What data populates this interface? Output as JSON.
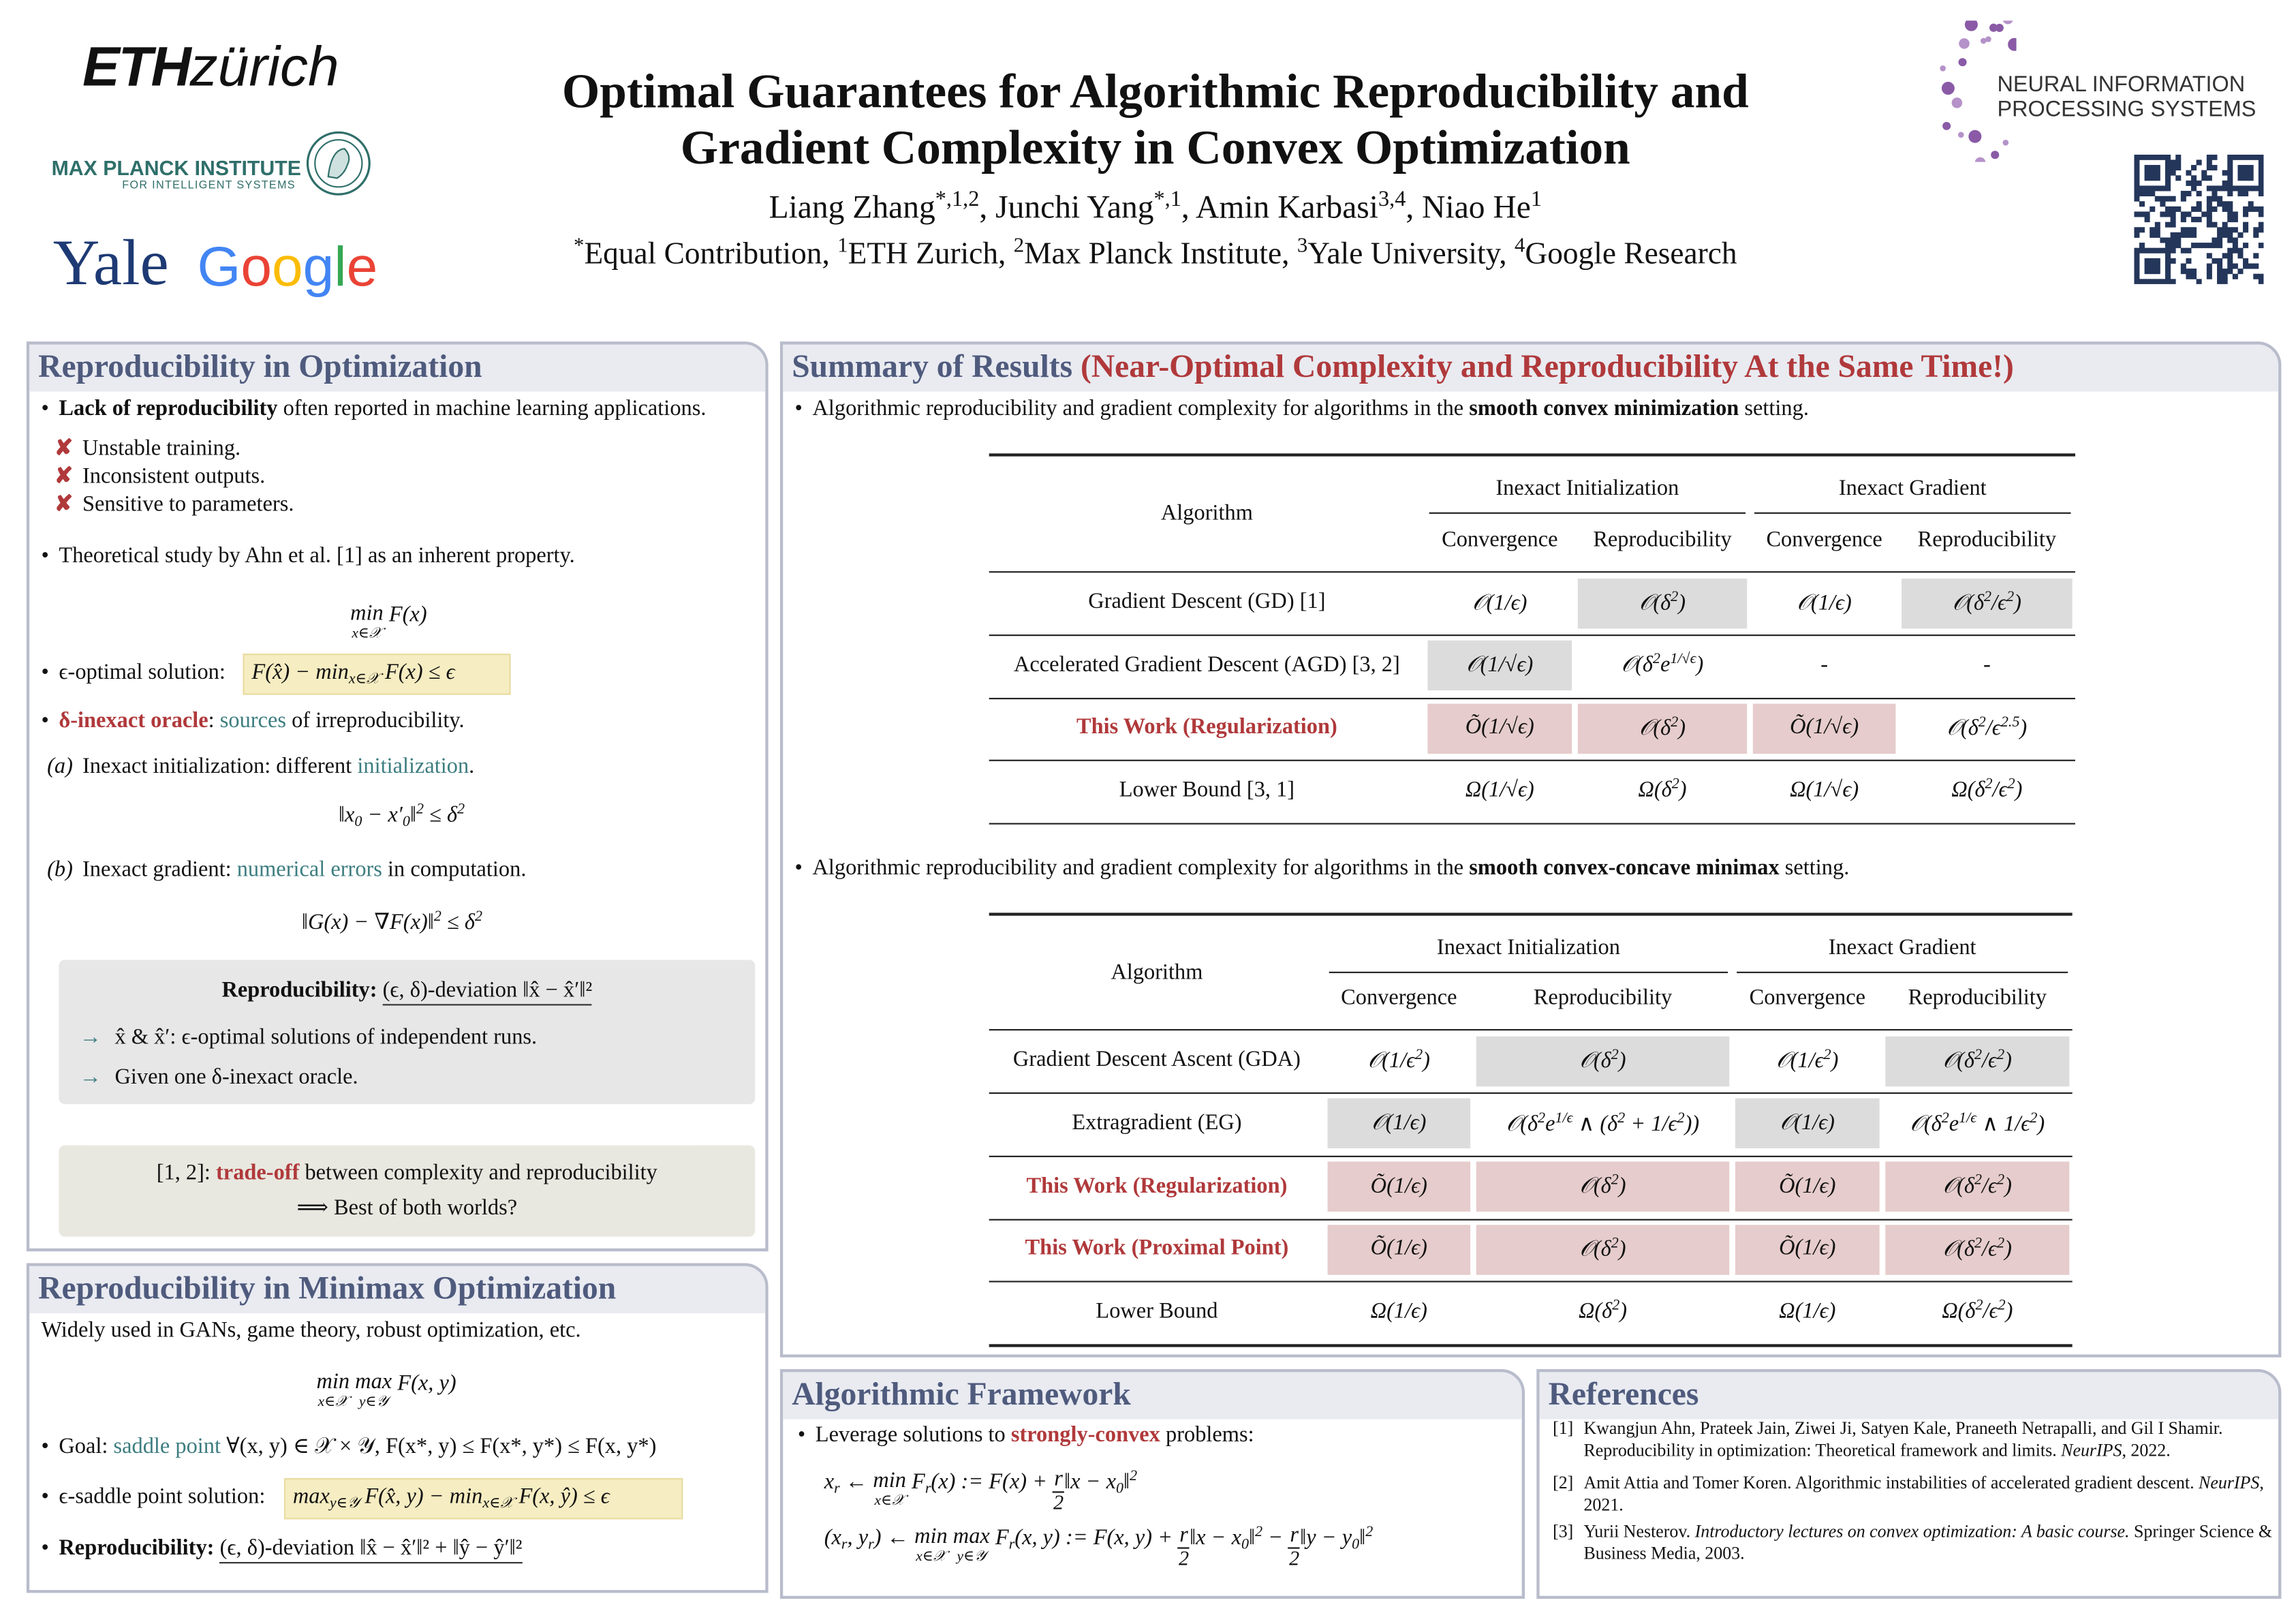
{
  "header": {
    "eth": [
      "ETH",
      "zürich"
    ],
    "max_planck": [
      "MAX PLANCK INSTITUTE",
      "FOR INTELLIGENT SYSTEMS"
    ],
    "yale": "Yale",
    "google": [
      {
        "text": "G",
        "style": "#4285f4"
      },
      {
        "text": "o",
        "style": "#ea4335"
      },
      {
        "text": "o",
        "style": "#fbbc05"
      },
      {
        "text": "g",
        "style": "#4285f4"
      },
      {
        "text": "l",
        "style": "#34a853"
      },
      {
        "text": "e",
        "style": "#ea4335"
      }
    ],
    "neurips": [
      "NEURAL INFORMATION",
      "PROCESSING SYSTEMS"
    ],
    "title": [
      "Optimal  Guarantees  for  Algorithmic  Reproducibility  and",
      "Gradient  Complexity  in  Convex  Optimization"
    ],
    "authors": [
      "Liang Zhang",
      {
        "text": "*,1,2",
        "style": "sup"
      },
      ",  Junchi Yang",
      {
        "text": "*,1",
        "style": "sup"
      },
      ",  Amin Karbasi",
      {
        "text": "3,4",
        "style": "sup"
      },
      ",  Niao He",
      {
        "text": "1",
        "style": "sup"
      }
    ],
    "affiliations": [
      {
        "text": "*",
        "style": "sup"
      },
      "Equal Contribution, ",
      {
        "text": "1",
        "style": "sup"
      },
      "ETH Zurich, ",
      {
        "text": "2",
        "style": "sup"
      },
      "Max Planck Institute, ",
      {
        "text": "3",
        "style": "sup"
      },
      "Yale University, ",
      {
        "text": "4",
        "style": "sup"
      },
      "Google Research"
    ]
  },
  "optimization": {
    "title": "Reproducibility in Optimization",
    "bullet1": [
      {
        "text": "Lack of reproducibility",
        "style": "bold"
      },
      " often reported in machine learning applications."
    ],
    "issues": [
      "Unstable training.",
      "Inconsistent outputs.",
      "Sensitive to parameters."
    ],
    "bullet2": "Theoretical study by Ahn et al. [1] as an inherent property.",
    "objective": [
      {
        "text": "min",
        "under": "x∈𝒳"
      },
      " F(x)"
    ],
    "eps_label": "ϵ-optimal solution:",
    "eps_formula": [
      "F(x̂) − min",
      {
        "text": "x∈𝒳",
        "style": "sub"
      },
      " F(x) ≤ ϵ"
    ],
    "oracle": [
      {
        "text": "δ-inexact oracle",
        "style": "red"
      },
      ": ",
      {
        "text": "sources",
        "style": "teal"
      },
      " of irreproducibility."
    ],
    "case_a": {
      "label": "(a)",
      "text": [
        "Inexact initialization: different ",
        {
          "text": "initialization",
          "style": "teal"
        },
        "."
      ],
      "formula": [
        "‖x",
        {
          "text": "0",
          "style": "sub"
        },
        " − x′",
        {
          "text": "0",
          "style": "sub"
        },
        "‖",
        {
          "text": "2",
          "style": "sup"
        },
        " ≤ δ",
        {
          "text": "2",
          "style": "sup"
        }
      ]
    },
    "case_b": {
      "label": "(b)",
      "text": [
        "Inexact gradient: ",
        {
          "text": "numerical errors",
          "style": "teal"
        },
        " in computation."
      ],
      "formula": [
        "‖G(x) − ∇F(x)‖",
        {
          "text": "2",
          "style": "sup"
        },
        " ≤ δ",
        {
          "text": "2",
          "style": "sup"
        }
      ]
    },
    "box": {
      "heading": [
        {
          "text": "Reproducibility:",
          "style": "bold"
        },
        " ",
        {
          "text": "(ϵ, δ)-deviation ‖x̂ − x̂′‖²",
          "style": "underline"
        }
      ],
      "points": [
        "x̂ & x̂′: ϵ-optimal solutions of independent runs.",
        "Given one δ-inexact oracle."
      ]
    },
    "tradeoff": [
      [
        "[1, 2]: ",
        {
          "text": "trade-off",
          "style": "red"
        },
        " between complexity and reproducibility"
      ],
      [
        "⟹ Best of both worlds?"
      ]
    ]
  },
  "minimax": {
    "title": "Reproducibility in Minimax Optimization",
    "intro": "Widely used in GANs, game theory, robust optimization, etc.",
    "objective": [
      {
        "text": "min",
        "under": "x∈𝒳"
      },
      " ",
      {
        "text": "max",
        "under": "y∈𝒴"
      },
      " F(x, y)"
    ],
    "goal": [
      "Goal: ",
      {
        "text": "saddle point",
        "style": "teal"
      },
      " ∀(x, y) ∈ 𝒳 × 𝒴, F(x*, y) ≤ F(x*, y*) ≤ F(x, y*)"
    ],
    "saddle_label": "ϵ-saddle point solution:",
    "saddle_formula": [
      "max",
      {
        "text": "y∈𝒴",
        "style": "sub"
      },
      " F(x̂, y) − min",
      {
        "text": "x∈𝒳",
        "style": "sub"
      },
      " F(x, ŷ) ≤ ϵ"
    ],
    "reproducibility": [
      {
        "text": "Reproducibility:",
        "style": "bold"
      },
      " ",
      {
        "text": "(ϵ, δ)-deviation ‖x̂ − x̂′‖² + ‖ŷ − ŷ′‖²",
        "style": "underline"
      }
    ]
  },
  "summary": {
    "title": "Summary of Results",
    "subtitle": "(Near-Optimal Complexity and Reproducibility At the Same Time!)",
    "intro1": [
      "Algorithmic reproducibility and gradient complexity for algorithms in the ",
      {
        "text": "smooth convex minimization",
        "style": "bold"
      },
      " setting."
    ],
    "table1": {
      "algorithm_header": "Algorithm",
      "groups": [
        "Inexact Initialization",
        "Inexact Gradient"
      ],
      "subheaders": [
        "Convergence",
        "Reproducibility",
        "Convergence",
        "Reproducibility"
      ],
      "rows": [
        {
          "algorithm": "Gradient Descent (GD) [1]",
          "cells": [
            "𝒪(1/ϵ)",
            [
              "𝒪(δ",
              {
                "text": "2",
                "style": "sup"
              },
              ")"
            ],
            "𝒪(1/ϵ)",
            [
              "𝒪(δ",
              {
                "text": "2",
                "style": "sup"
              },
              "/ϵ",
              {
                "text": "2",
                "style": "sup"
              },
              ")"
            ]
          ],
          "shade": [
            "none",
            "#dcdcdc",
            "none",
            "#dcdcdc"
          ]
        },
        {
          "algorithm": "Accelerated Gradient Descent (AGD) [3, 2]",
          "cells": [
            "𝒪(1/√ϵ)",
            [
              "𝒪(δ",
              {
                "text": "2",
                "style": "sup"
              },
              "e",
              {
                "text": "1/√ϵ",
                "style": "sup"
              },
              ")"
            ],
            "-",
            "-"
          ],
          "shade": [
            "#dcdcdc",
            "none",
            "none",
            "none"
          ]
        },
        {
          "algorithm": "This Work (Regularization)",
          "style": "red",
          "cells": [
            "Õ(1/√ϵ)",
            [
              "𝒪(δ",
              {
                "text": "2",
                "style": "sup"
              },
              ")"
            ],
            "Õ(1/√ϵ)",
            [
              "𝒪(δ",
              {
                "text": "2",
                "style": "sup"
              },
              "/ϵ",
              {
                "text": "2.5",
                "style": "sup"
              },
              ")"
            ]
          ],
          "shade": [
            "#e6cccc",
            "#e6cccc",
            "#e6cccc",
            "none"
          ]
        },
        {
          "algorithm": "Lower Bound [3, 1]",
          "cells": [
            "Ω(1/√ϵ)",
            [
              "Ω(δ",
              {
                "text": "2",
                "style": "sup"
              },
              ")"
            ],
            "Ω(1/√ϵ)",
            [
              "Ω(δ",
              {
                "text": "2",
                "style": "sup"
              },
              "/ϵ",
              {
                "text": "2",
                "style": "sup"
              },
              ")"
            ]
          ],
          "shade": [
            "none",
            "none",
            "none",
            "none"
          ]
        }
      ]
    },
    "intro2": [
      "Algorithmic reproducibility and gradient complexity for algorithms in the ",
      {
        "text": "smooth convex-concave minimax",
        "style": "bold"
      },
      " setting."
    ],
    "table2": {
      "algorithm_header": "Algorithm",
      "groups": [
        "Inexact Initialization",
        "Inexact Gradient"
      ],
      "subheaders": [
        "Convergence",
        "Reproducibility",
        "Convergence",
        "Reproducibility"
      ],
      "rows": [
        {
          "algorithm": "Gradient Descent Ascent (GDA)",
          "cells": [
            [
              "𝒪(1/ϵ",
              {
                "text": "2",
                "style": "sup"
              },
              ")"
            ],
            [
              "𝒪(δ",
              {
                "text": "2",
                "style": "sup"
              },
              ")"
            ],
            [
              "𝒪(1/ϵ",
              {
                "text": "2",
                "style": "sup"
              },
              ")"
            ],
            [
              "𝒪(δ",
              {
                "text": "2",
                "style": "sup"
              },
              "/ϵ",
              {
                "text": "2",
                "style": "sup"
              },
              ")"
            ]
          ],
          "shade": [
            "none",
            "#dcdcdc",
            "none",
            "#dcdcdc"
          ]
        },
        {
          "algorithm": "Extragradient (EG)",
          "cells": [
            "𝒪(1/ϵ)",
            [
              "𝒪(δ",
              {
                "text": "2",
                "style": "sup"
              },
              "e",
              {
                "text": "1/ϵ",
                "style": "sup"
              },
              " ∧ (δ",
              {
                "text": "2",
                "style": "sup"
              },
              " + 1/ϵ",
              {
                "text": "2",
                "style": "sup"
              },
              "))"
            ],
            "𝒪(1/ϵ)",
            [
              "𝒪(δ",
              {
                "text": "2",
                "style": "sup"
              },
              "e",
              {
                "text": "1/ϵ",
                "style": "sup"
              },
              " ∧ 1/ϵ",
              {
                "text": "2",
                "style": "sup"
              },
              ")"
            ]
          ],
          "shade": [
            "#dcdcdc",
            "none",
            "#dcdcdc",
            "none"
          ]
        },
        {
          "algorithm": "This Work (Regularization)",
          "style": "red",
          "cells": [
            "Õ(1/ϵ)",
            [
              "𝒪(δ",
              {
                "text": "2",
                "style": "sup"
              },
              ")"
            ],
            "Õ(1/ϵ)",
            [
              "𝒪(δ",
              {
                "text": "2",
                "style": "sup"
              },
              "/ϵ",
              {
                "text": "2",
                "style": "sup"
              },
              ")"
            ]
          ],
          "shade": [
            "#e6cccc",
            "#e6cccc",
            "#e6cccc",
            "#e6cccc"
          ]
        },
        {
          "algorithm": "This Work (Proximal Point)",
          "style": "red",
          "cells": [
            "Õ(1/ϵ)",
            [
              "𝒪(δ",
              {
                "text": "2",
                "style": "sup"
              },
              ")"
            ],
            "Õ(1/ϵ)",
            [
              "𝒪(δ",
              {
                "text": "2",
                "style": "sup"
              },
              "/ϵ",
              {
                "text": "2",
                "style": "sup"
              },
              ")"
            ]
          ],
          "shade": [
            "#e6cccc",
            "#e6cccc",
            "#e6cccc",
            "#e6cccc"
          ]
        },
        {
          "algorithm": "Lower Bound",
          "cells": [
            "Ω(1/ϵ)",
            [
              "Ω(δ",
              {
                "text": "2",
                "style": "sup"
              },
              ")"
            ],
            "Ω(1/ϵ)",
            [
              "Ω(δ",
              {
                "text": "2",
                "style": "sup"
              },
              "/ϵ",
              {
                "text": "2",
                "style": "sup"
              },
              ")"
            ]
          ],
          "shade": [
            "none",
            "none",
            "none",
            "none"
          ]
        }
      ]
    }
  },
  "framework": {
    "title": "Algorithmic Framework",
    "intro": [
      "Leverage solutions to ",
      {
        "text": "strongly-convex",
        "style": "red"
      },
      " problems:"
    ],
    "eq1": [
      "x",
      {
        "text": "r",
        "style": "sub"
      },
      " ← ",
      {
        "text": "min",
        "under": "x∈𝒳"
      },
      " F",
      {
        "text": "r",
        "style": "sub"
      },
      "(x) := F(x) + ",
      {
        "text": "r",
        "under": "2",
        "style": "frac"
      },
      "‖x − x",
      {
        "text": "0",
        "style": "sub"
      },
      "‖",
      {
        "text": "2",
        "style": "sup"
      }
    ],
    "eq2": [
      "(x",
      {
        "text": "r",
        "style": "sub"
      },
      ", y",
      {
        "text": "r",
        "style": "sub"
      },
      ") ← ",
      {
        "text": "min",
        "under": "x∈𝒳"
      },
      " ",
      {
        "text": "max",
        "under": "y∈𝒴"
      },
      " F",
      {
        "text": "r",
        "style": "sub"
      },
      "(x, y) := F(x, y) + ",
      {
        "text": "r",
        "under": "2",
        "style": "frac"
      },
      "‖x − x",
      {
        "text": "0",
        "style": "sub"
      },
      "‖",
      {
        "text": "2",
        "style": "sup"
      },
      " − ",
      {
        "text": "r",
        "under": "2",
        "style": "frac"
      },
      "‖y − y",
      {
        "text": "0",
        "style": "sub"
      },
      "‖",
      {
        "text": "2",
        "style": "sup"
      }
    ]
  },
  "references": {
    "title": "References",
    "items": [
      {
        "label": "[1]",
        "text": [
          "Kwangjun Ahn, Prateek Jain, Ziwei Ji, Satyen Kale, Praneeth Netrapalli, and Gil I Shamir. Reproducibility in optimization: Theoretical framework and limits. ",
          {
            "text": "NeurIPS",
            "style": "italic"
          },
          ", 2022."
        ]
      },
      {
        "label": "[2]",
        "text": [
          "Amit Attia and Tomer Koren.  Algorithmic instabilities of accelerated gradient descent. ",
          {
            "text": "NeurIPS",
            "style": "italic"
          },
          ", 2021."
        ]
      },
      {
        "label": "[3]",
        "text": [
          "Yurii Nesterov.  ",
          {
            "text": "Introductory lectures on convex optimization: A basic course.",
            "style": "italic"
          },
          "  Springer Science & Business Media, 2003."
        ]
      }
    ]
  }
}
